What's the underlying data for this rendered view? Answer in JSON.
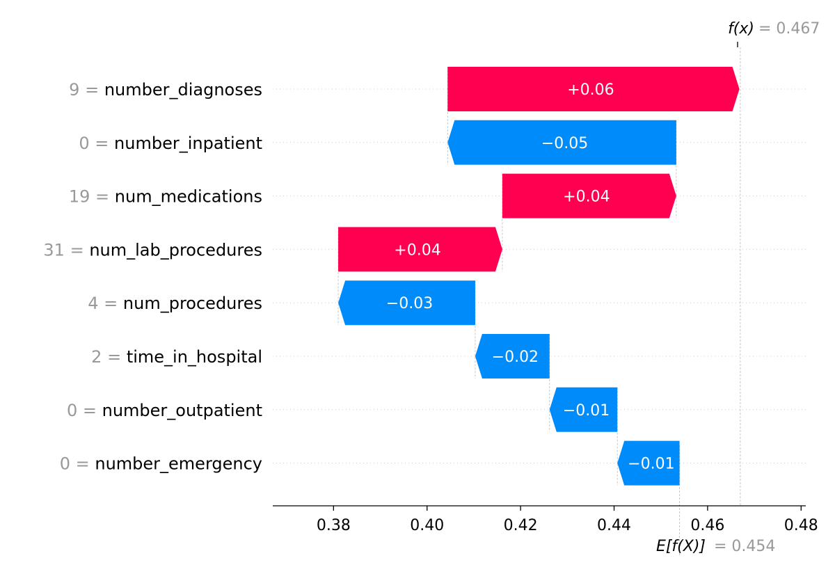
{
  "chart_data": {
    "type": "bar",
    "subtype": "waterfall",
    "base_value": 0.454,
    "prediction": 0.467,
    "xlim": [
      0.367,
      0.481
    ],
    "xticks": [
      "0.38",
      "0.40",
      "0.42",
      "0.44",
      "0.46",
      "0.48"
    ],
    "grid": false,
    "features": [
      {
        "value": "9",
        "name": "number_diagnoses",
        "contribution": 0.0624,
        "label": "+0.06"
      },
      {
        "value": "0",
        "name": "number_inpatient",
        "contribution": -0.0489,
        "label": "−0.05"
      },
      {
        "value": "19",
        "name": "num_medications",
        "contribution": 0.0372,
        "label": "+0.04"
      },
      {
        "value": "31",
        "name": "num_lab_procedures",
        "contribution": 0.0351,
        "label": "+0.04"
      },
      {
        "value": "4",
        "name": "num_procedures",
        "contribution": -0.0293,
        "label": "−0.03"
      },
      {
        "value": "2",
        "name": "time_in_hospital",
        "contribution": -0.0159,
        "label": "−0.02"
      },
      {
        "value": "0",
        "name": "number_outpatient",
        "contribution": -0.0145,
        "label": "−0.01"
      },
      {
        "value": "0",
        "name": "number_emergency",
        "contribution": -0.0133,
        "label": "−0.01"
      }
    ],
    "annotations": {
      "fx_label": "f(x)",
      "fx_value": "= 0.467",
      "efx_label": "E[f(X)]",
      "efx_value": "= 0.454"
    },
    "colors": {
      "positive": "#ff0051",
      "negative": "#008bfb",
      "axis": "#000000",
      "guide": "#bbbbbb",
      "label_muted": "#999999"
    }
  }
}
